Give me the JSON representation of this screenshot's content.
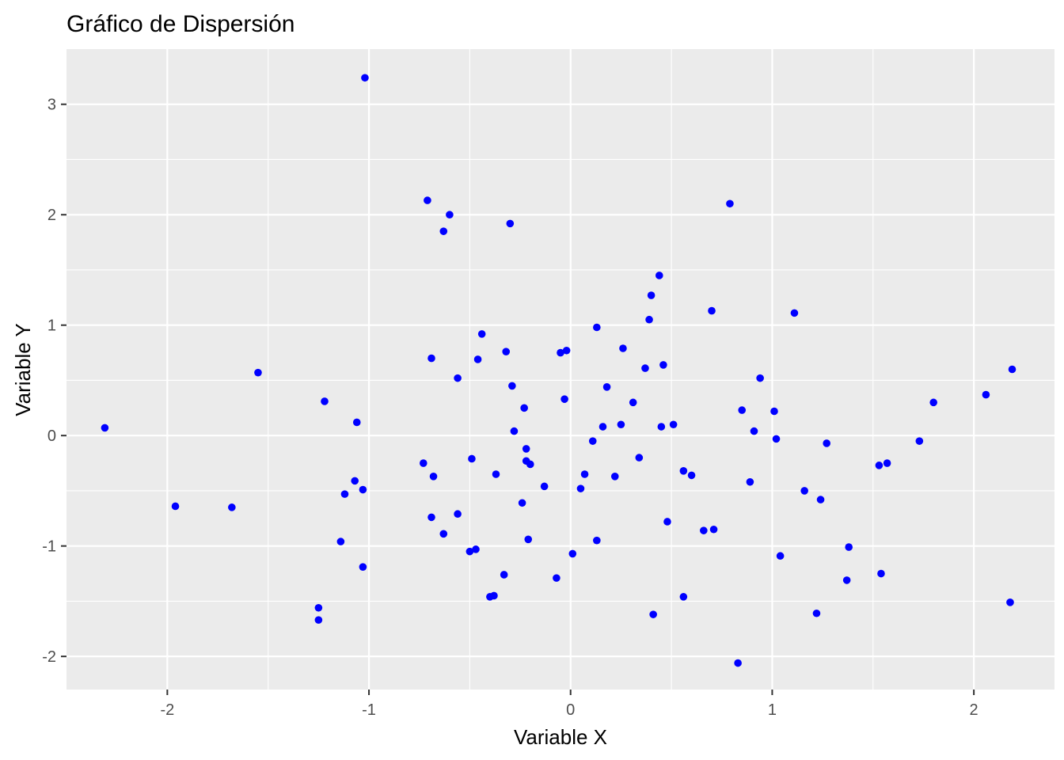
{
  "chart_data": {
    "type": "scatter",
    "title": "Gráfico de Dispersión",
    "xlabel": "Variable X",
    "ylabel": "Variable Y",
    "xlim": [
      -2.5,
      2.4
    ],
    "ylim": [
      -2.3,
      3.5
    ],
    "x_ticks": [
      -2,
      -1,
      0,
      1,
      2
    ],
    "x_tick_labels": [
      "-2",
      "-1",
      "0",
      "1",
      "2"
    ],
    "y_ticks": [
      -2,
      -1,
      0,
      1,
      2,
      3
    ],
    "y_tick_labels": [
      "-2",
      "-1",
      "0",
      "1",
      "2",
      "3"
    ],
    "grid": true,
    "panel_background": "#ebebeb",
    "grid_color": "#ffffff",
    "point_color": "#0000ff",
    "points": [
      {
        "x": -2.31,
        "y": 0.07
      },
      {
        "x": -1.96,
        "y": -0.64
      },
      {
        "x": -1.68,
        "y": -0.65
      },
      {
        "x": -1.55,
        "y": 0.57
      },
      {
        "x": -1.25,
        "y": -1.56
      },
      {
        "x": -1.25,
        "y": -1.67
      },
      {
        "x": -1.22,
        "y": 0.31
      },
      {
        "x": -1.14,
        "y": -0.96
      },
      {
        "x": -1.12,
        "y": -0.53
      },
      {
        "x": -1.07,
        "y": -0.41
      },
      {
        "x": -1.06,
        "y": 0.12
      },
      {
        "x": -1.03,
        "y": -0.49
      },
      {
        "x": -1.03,
        "y": -1.19
      },
      {
        "x": -1.02,
        "y": 3.24
      },
      {
        "x": -0.73,
        "y": -0.25
      },
      {
        "x": -0.71,
        "y": 2.13
      },
      {
        "x": -0.69,
        "y": 0.7
      },
      {
        "x": -0.69,
        "y": -0.74
      },
      {
        "x": -0.68,
        "y": -0.37
      },
      {
        "x": -0.63,
        "y": 1.85
      },
      {
        "x": -0.63,
        "y": -0.89
      },
      {
        "x": -0.6,
        "y": 2.0
      },
      {
        "x": -0.56,
        "y": 0.52
      },
      {
        "x": -0.56,
        "y": -0.71
      },
      {
        "x": -0.5,
        "y": -1.05
      },
      {
        "x": -0.49,
        "y": -0.21
      },
      {
        "x": -0.47,
        "y": -1.03
      },
      {
        "x": -0.46,
        "y": 0.69
      },
      {
        "x": -0.44,
        "y": 0.92
      },
      {
        "x": -0.4,
        "y": -1.46
      },
      {
        "x": -0.38,
        "y": -1.45
      },
      {
        "x": -0.37,
        "y": -0.35
      },
      {
        "x": -0.33,
        "y": -1.26
      },
      {
        "x": -0.32,
        "y": 0.76
      },
      {
        "x": -0.3,
        "y": 1.92
      },
      {
        "x": -0.29,
        "y": 0.45
      },
      {
        "x": -0.28,
        "y": 0.04
      },
      {
        "x": -0.24,
        "y": -0.61
      },
      {
        "x": -0.23,
        "y": 0.25
      },
      {
        "x": -0.22,
        "y": -0.12
      },
      {
        "x": -0.22,
        "y": -0.23
      },
      {
        "x": -0.21,
        "y": -0.94
      },
      {
        "x": -0.2,
        "y": -0.26
      },
      {
        "x": -0.13,
        "y": -0.46
      },
      {
        "x": -0.07,
        "y": -1.29
      },
      {
        "x": -0.05,
        "y": 0.75
      },
      {
        "x": -0.03,
        "y": 0.33
      },
      {
        "x": -0.02,
        "y": 0.77
      },
      {
        "x": 0.01,
        "y": -1.07
      },
      {
        "x": 0.05,
        "y": -0.48
      },
      {
        "x": 0.07,
        "y": -0.35
      },
      {
        "x": 0.11,
        "y": -0.05
      },
      {
        "x": 0.13,
        "y": 0.98
      },
      {
        "x": 0.13,
        "y": -0.95
      },
      {
        "x": 0.16,
        "y": 0.08
      },
      {
        "x": 0.18,
        "y": 0.44
      },
      {
        "x": 0.22,
        "y": -0.37
      },
      {
        "x": 0.25,
        "y": 0.1
      },
      {
        "x": 0.26,
        "y": 0.79
      },
      {
        "x": 0.31,
        "y": 0.3
      },
      {
        "x": 0.34,
        "y": -0.2
      },
      {
        "x": 0.37,
        "y": 0.61
      },
      {
        "x": 0.39,
        "y": 1.05
      },
      {
        "x": 0.4,
        "y": 1.27
      },
      {
        "x": 0.41,
        "y": -1.62
      },
      {
        "x": 0.44,
        "y": 1.45
      },
      {
        "x": 0.45,
        "y": 0.08
      },
      {
        "x": 0.46,
        "y": 0.64
      },
      {
        "x": 0.48,
        "y": -0.78
      },
      {
        "x": 0.51,
        "y": 0.1
      },
      {
        "x": 0.56,
        "y": -0.32
      },
      {
        "x": 0.56,
        "y": -1.46
      },
      {
        "x": 0.6,
        "y": -0.36
      },
      {
        "x": 0.66,
        "y": -0.86
      },
      {
        "x": 0.7,
        "y": 1.13
      },
      {
        "x": 0.71,
        "y": -0.85
      },
      {
        "x": 0.79,
        "y": 2.1
      },
      {
        "x": 0.83,
        "y": -2.06
      },
      {
        "x": 0.85,
        "y": 0.23
      },
      {
        "x": 0.89,
        "y": -0.42
      },
      {
        "x": 0.91,
        "y": 0.04
      },
      {
        "x": 0.94,
        "y": 0.52
      },
      {
        "x": 1.01,
        "y": 0.22
      },
      {
        "x": 1.02,
        "y": -0.03
      },
      {
        "x": 1.04,
        "y": -1.09
      },
      {
        "x": 1.11,
        "y": 1.11
      },
      {
        "x": 1.16,
        "y": -0.5
      },
      {
        "x": 1.22,
        "y": -1.61
      },
      {
        "x": 1.24,
        "y": -0.58
      },
      {
        "x": 1.27,
        "y": -0.07
      },
      {
        "x": 1.37,
        "y": -1.31
      },
      {
        "x": 1.38,
        "y": -1.01
      },
      {
        "x": 1.53,
        "y": -0.27
      },
      {
        "x": 1.54,
        "y": -1.25
      },
      {
        "x": 1.57,
        "y": -0.25
      },
      {
        "x": 1.73,
        "y": -0.05
      },
      {
        "x": 1.8,
        "y": 0.3
      },
      {
        "x": 2.06,
        "y": 0.37
      },
      {
        "x": 2.18,
        "y": -1.51
      },
      {
        "x": 2.19,
        "y": 0.6
      }
    ]
  }
}
